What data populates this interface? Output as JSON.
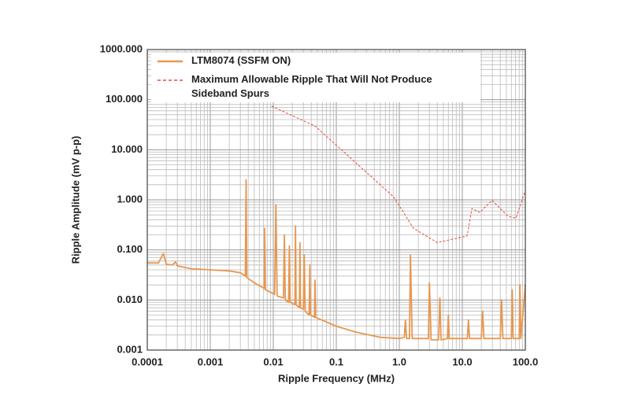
{
  "chart_data": {
    "type": "line",
    "xlabel": "Ripple Frequency (MHz)",
    "ylabel": "Ripple Amplitude (mV p-p)",
    "log_x": true,
    "log_y": true,
    "grid": true,
    "legend": "upper left",
    "xlim": [
      0.0001,
      100
    ],
    "ylim": [
      0.001,
      1000
    ],
    "xticks": [
      0.0001,
      0.001,
      0.01,
      0.1,
      {
        "value": 1,
        "label": "1.0"
      },
      {
        "value": 10,
        "label": "10.0"
      },
      {
        "value": 100,
        "label": "100.0"
      }
    ],
    "yticks": [
      0.001,
      {
        "value": 0.01,
        "label": "0.010"
      },
      {
        "value": 0.1,
        "label": "0.100"
      },
      {
        "value": 1,
        "label": "1.000"
      },
      {
        "value": 10,
        "label": "10.000"
      },
      {
        "value": 100,
        "label": "100.000"
      },
      {
        "value": 1000,
        "label": "1000.000"
      }
    ],
    "series": [
      {
        "name": "LTM8074 (SSFM ON)",
        "color": "#e8974f",
        "style": "solid",
        "x": [
          0.0001,
          0.00015,
          0.00018,
          0.0002,
          0.00025,
          0.00028,
          0.0003,
          0.0005,
          0.001,
          0.002,
          0.003,
          0.0036,
          0.0037,
          0.0038,
          0.005,
          0.0072,
          0.0073,
          0.0075,
          0.0105,
          0.011,
          0.0115,
          0.0145,
          0.015,
          0.0155,
          0.0175,
          0.018,
          0.0185,
          0.022,
          0.0225,
          0.023,
          0.026,
          0.0265,
          0.027,
          0.03,
          0.031,
          0.032,
          0.037,
          0.038,
          0.039,
          0.045,
          0.046,
          0.047,
          0.1,
          0.2,
          0.5,
          1.0,
          1.2,
          1.25,
          1.3,
          1.45,
          1.5,
          1.6,
          2.9,
          3.0,
          3.2,
          4.2,
          4.4,
          4.6,
          5.8,
          6.0,
          6.2,
          8,
          10,
          12,
          12.5,
          13,
          20,
          21,
          22,
          40,
          42,
          44,
          60,
          62,
          64,
          80,
          82,
          85,
          100
        ],
        "values": [
          0.055,
          0.055,
          0.085,
          0.052,
          0.05,
          0.058,
          0.048,
          0.042,
          0.04,
          0.038,
          0.035,
          0.03,
          2.5,
          0.028,
          0.022,
          0.017,
          0.27,
          0.016,
          0.013,
          0.8,
          0.012,
          0.011,
          0.2,
          0.01,
          0.009,
          0.12,
          0.009,
          0.008,
          0.3,
          0.008,
          0.007,
          0.14,
          0.007,
          0.0065,
          0.08,
          0.006,
          0.005,
          0.05,
          0.005,
          0.0045,
          0.025,
          0.0045,
          0.003,
          0.0023,
          0.0018,
          0.0017,
          0.0018,
          0.004,
          0.0017,
          0.0017,
          0.08,
          0.0017,
          0.0017,
          0.022,
          0.0016,
          0.0016,
          0.011,
          0.0016,
          0.0017,
          0.005,
          0.0017,
          0.0017,
          0.0017,
          0.0017,
          0.004,
          0.0017,
          0.0017,
          0.006,
          0.0017,
          0.0017,
          0.01,
          0.0017,
          0.0017,
          0.016,
          0.0017,
          0.0017,
          0.02,
          0.0017,
          0.02
        ]
      },
      {
        "name": "Maximum Allowable Ripple That Will Not Produce Sideband Spurs",
        "color": "#e8493a",
        "style": "dashed",
        "x": [
          0.0094,
          0.046,
          0.81,
          1.68,
          4.0,
          11.9,
          14.2,
          19,
          29.6,
          53,
          71,
          100
        ],
        "values": [
          74,
          29.7,
          1.15,
          0.27,
          0.14,
          0.19,
          0.67,
          0.56,
          0.98,
          0.47,
          0.43,
          1.53
        ]
      }
    ]
  }
}
